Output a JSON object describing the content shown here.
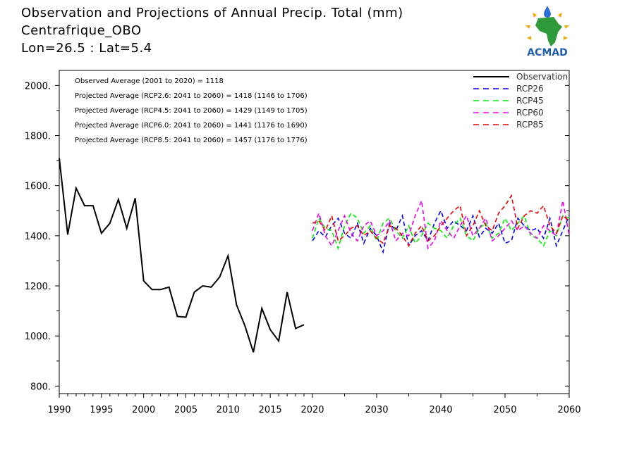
{
  "header": {
    "title_line1": "Observation and Projections of Annual Precip. Total (mm)",
    "title_line2": "Centrafrique_OBO",
    "title_line3": "Lon=26.5 : Lat=5.4",
    "logo_text": "ACMAD"
  },
  "chart_data": {
    "type": "line",
    "ylim": [
      770,
      2060
    ],
    "y_ticks": [
      800,
      1000,
      1200,
      1400,
      1600,
      1800,
      2000
    ],
    "y_tick_labels": [
      "800.",
      "1000.",
      "1200.",
      "1400.",
      "1600.",
      "1800.",
      "2000."
    ],
    "x_ticks": [
      1990,
      1995,
      2000,
      2005,
      2010,
      2015,
      2020,
      2030,
      2040,
      2050,
      2060
    ],
    "x_tick_labels": [
      "1990",
      "1995",
      "2000",
      "2005",
      "2010",
      "2015",
      "2020",
      "2030",
      "2040",
      "2050",
      "2060"
    ],
    "stats": [
      "Observed Average (2001 to 2020) = 1118",
      "Projected Average (RCP2.6: 2041 to 2060) = 1418 (1146 to 1706)",
      "Projected Average (RCP4.5: 2041 to 2060) = 1429 (1149 to 1705)",
      "Projected Average (RCP6.0: 2041 to 2060) = 1441 (1176 to 1690)",
      "Projected Average (RCP8.5: 2041 to 2060) = 1457 (1176 to 1776)"
    ],
    "legend": [
      {
        "label": "Observation",
        "color": "#000000",
        "dash": false
      },
      {
        "label": "RCP26",
        "color": "#0000ee",
        "dash": true
      },
      {
        "label": "RCP45",
        "color": "#00ee00",
        "dash": true
      },
      {
        "label": "RCP60",
        "color": "#ee00ee",
        "dash": true
      },
      {
        "label": "RCP85",
        "color": "#ee0000",
        "dash": true
      }
    ],
    "observation": {
      "x": [
        1990,
        1991,
        1992,
        1993,
        1994,
        1995,
        1996,
        1997,
        1998,
        1999,
        2000,
        2001,
        2002,
        2003,
        2004,
        2005,
        2006,
        2007,
        2008,
        2009,
        2010,
        2011,
        2012,
        2013,
        2014,
        2015,
        2016,
        2017,
        2018,
        2019
      ],
      "y": [
        1710,
        1405,
        1590,
        1520,
        1520,
        1410,
        1450,
        1545,
        1430,
        1550,
        1220,
        1185,
        1185,
        1195,
        1078,
        1075,
        1175,
        1200,
        1195,
        1235,
        1320,
        1125,
        1040,
        935,
        1110,
        1025,
        980,
        1175,
        1030,
        1045
      ]
    },
    "projection_years": [
      2020,
      2021,
      2022,
      2023,
      2024,
      2025,
      2026,
      2027,
      2028,
      2029,
      2030,
      2031,
      2032,
      2033,
      2034,
      2035,
      2036,
      2037,
      2038,
      2039,
      2040,
      2041,
      2042,
      2043,
      2044,
      2045,
      2046,
      2047,
      2048,
      2049,
      2050,
      2051,
      2052,
      2053,
      2054,
      2055,
      2056,
      2057,
      2058,
      2059,
      2060
    ],
    "series": [
      {
        "name": "RCP26",
        "color": "#0000ee",
        "values": [
          1380,
          1420,
          1395,
          1440,
          1470,
          1410,
          1390,
          1450,
          1370,
          1430,
          1400,
          1335,
          1450,
          1420,
          1480,
          1360,
          1400,
          1420,
          1380,
          1450,
          1500,
          1430,
          1460,
          1440,
          1420,
          1480,
          1395,
          1430,
          1410,
          1450,
          1370,
          1380,
          1470,
          1440,
          1420,
          1430,
          1390,
          1470,
          1360,
          1420,
          1480
        ]
      },
      {
        "name": "RCP45",
        "color": "#00ee00",
        "values": [
          1390,
          1470,
          1430,
          1420,
          1350,
          1440,
          1490,
          1470,
          1410,
          1440,
          1380,
          1450,
          1470,
          1420,
          1390,
          1440,
          1370,
          1400,
          1450,
          1430,
          1420,
          1390,
          1440,
          1470,
          1400,
          1380,
          1430,
          1450,
          1390,
          1410,
          1470,
          1420,
          1450,
          1480,
          1400,
          1390,
          1360,
          1420,
          1400,
          1480,
          1470
        ]
      },
      {
        "name": "RCP60",
        "color": "#ee00ee",
        "values": [
          1420,
          1490,
          1400,
          1360,
          1420,
          1480,
          1410,
          1380,
          1440,
          1460,
          1400,
          1420,
          1460,
          1380,
          1410,
          1400,
          1480,
          1540,
          1350,
          1380,
          1460,
          1420,
          1390,
          1440,
          1480,
          1400,
          1430,
          1470,
          1380,
          1400,
          1430,
          1460,
          1420,
          1440,
          1410,
          1390,
          1440,
          1420,
          1400,
          1540,
          1400
        ]
      },
      {
        "name": "RCP85",
        "color": "#ee0000",
        "values": [
          1450,
          1460,
          1420,
          1480,
          1380,
          1400,
          1430,
          1440,
          1400,
          1420,
          1390,
          1370,
          1440,
          1430,
          1400,
          1360,
          1410,
          1440,
          1380,
          1400,
          1440,
          1470,
          1500,
          1520,
          1400,
          1440,
          1500,
          1440,
          1420,
          1490,
          1520,
          1560,
          1430,
          1480,
          1500,
          1490,
          1520,
          1440,
          1410,
          1480,
          1460
        ]
      }
    ]
  }
}
